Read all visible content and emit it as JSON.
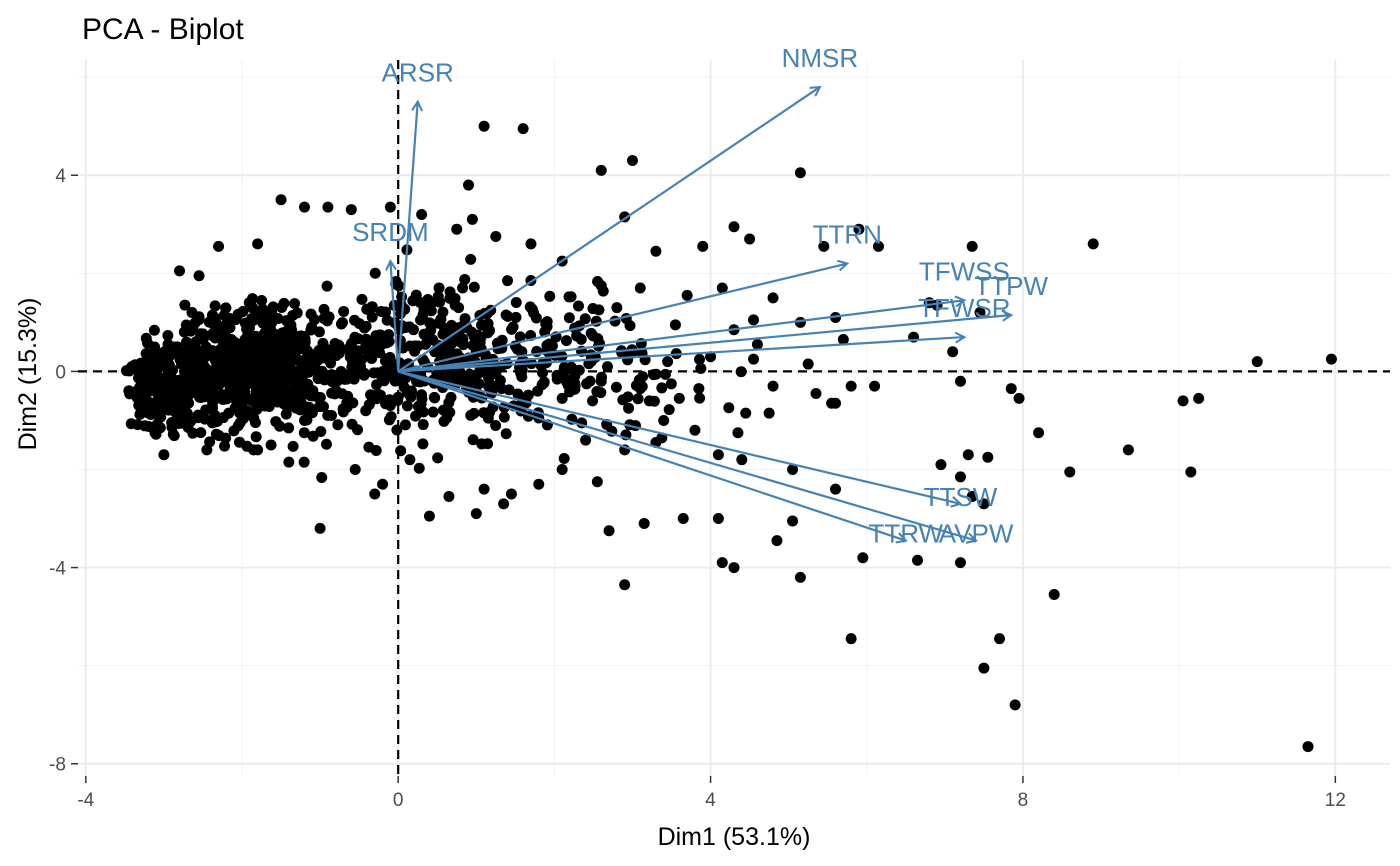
{
  "chart_data": {
    "type": "scatter",
    "title": "PCA - Biplot",
    "xlabel": "Dim1 (53.1%)",
    "ylabel": "Dim2 (15.3%)",
    "xlim": [
      -4.1,
      12.7
    ],
    "ylim": [
      -8.25,
      6.35
    ],
    "x_ticks": [
      -4,
      0,
      4,
      8,
      12
    ],
    "y_ticks": [
      -8,
      -4,
      0,
      4
    ],
    "x_tick_labels": [
      "-4",
      "0",
      "4",
      "8",
      "12"
    ],
    "y_tick_labels": [
      "-8",
      "-4",
      "0",
      "4"
    ],
    "grid": true,
    "arrow_color": "#4682b4",
    "point_color": "#000000",
    "variables": [
      {
        "name": "ARSR",
        "x": 0.25,
        "y": 5.5
      },
      {
        "name": "NMSR",
        "x": 5.4,
        "y": 5.8
      },
      {
        "name": "SRDM",
        "x": -0.1,
        "y": 2.25
      },
      {
        "name": "TTRN",
        "x": 5.75,
        "y": 2.2
      },
      {
        "name": "TFWSS",
        "x": 7.25,
        "y": 1.45
      },
      {
        "name": "TTPW",
        "x": 7.85,
        "y": 1.15
      },
      {
        "name": "TFWSR",
        "x": 7.25,
        "y": 0.7
      },
      {
        "name": "TTSW",
        "x": 7.2,
        "y": -2.7
      },
      {
        "name": "TTRW",
        "x": 6.5,
        "y": -3.45
      },
      {
        "name": "AVPW",
        "x": 7.4,
        "y": -3.45
      }
    ],
    "points": [
      [
        1.1,
        5.0
      ],
      [
        1.6,
        4.95
      ],
      [
        3.0,
        4.3
      ],
      [
        2.6,
        4.1
      ],
      [
        5.15,
        4.05
      ],
      [
        0.9,
        3.8
      ],
      [
        -1.5,
        3.5
      ],
      [
        -1.2,
        3.35
      ],
      [
        -0.9,
        3.35
      ],
      [
        -0.6,
        3.3
      ],
      [
        0.3,
        3.2
      ],
      [
        0.95,
        3.1
      ],
      [
        2.9,
        3.15
      ],
      [
        4.3,
        2.95
      ],
      [
        5.9,
        2.9
      ],
      [
        5.45,
        2.55
      ],
      [
        6.15,
        2.55
      ],
      [
        7.35,
        2.55
      ],
      [
        8.9,
        2.6
      ],
      [
        3.3,
        2.45
      ],
      [
        3.9,
        2.55
      ],
      [
        4.5,
        2.7
      ],
      [
        6.8,
        1.4
      ],
      [
        6.9,
        1.35
      ],
      [
        7.45,
        1.2
      ],
      [
        6.6,
        0.7
      ],
      [
        5.7,
        0.65
      ],
      [
        4.6,
        0.55
      ],
      [
        5.8,
        -0.3
      ],
      [
        6.1,
        -0.3
      ],
      [
        7.1,
        0.4
      ],
      [
        7.2,
        -0.2
      ],
      [
        4.8,
        -0.3
      ],
      [
        5.35,
        -0.45
      ],
      [
        5.55,
        -0.65
      ],
      [
        5.6,
        -0.65
      ],
      [
        4.75,
        -0.85
      ],
      [
        4.45,
        -0.85
      ],
      [
        4.35,
        -1.25
      ],
      [
        3.4,
        -1.0
      ],
      [
        3.8,
        -1.2
      ],
      [
        3.3,
        -1.45
      ],
      [
        2.4,
        -1.4
      ],
      [
        2.9,
        -1.6
      ],
      [
        4.1,
        -1.7
      ],
      [
        4.4,
        -1.8
      ],
      [
        5.05,
        -2.0
      ],
      [
        6.95,
        -1.9
      ],
      [
        7.3,
        -1.7
      ],
      [
        7.55,
        -1.75
      ],
      [
        7.85,
        -0.35
      ],
      [
        7.95,
        -0.55
      ],
      [
        8.2,
        -1.25
      ],
      [
        8.6,
        -2.05
      ],
      [
        9.35,
        -1.6
      ],
      [
        10.05,
        -0.6
      ],
      [
        10.25,
        -0.55
      ],
      [
        10.15,
        -2.05
      ],
      [
        11.0,
        0.2
      ],
      [
        11.95,
        0.25
      ],
      [
        7.2,
        -2.15
      ],
      [
        7.35,
        -2.55
      ],
      [
        7.5,
        -2.7
      ],
      [
        5.6,
        -2.4
      ],
      [
        5.05,
        -3.05
      ],
      [
        4.1,
        -3.0
      ],
      [
        4.85,
        -3.45
      ],
      [
        5.95,
        -3.8
      ],
      [
        6.65,
        -3.85
      ],
      [
        7.2,
        -3.9
      ],
      [
        4.15,
        -3.9
      ],
      [
        4.3,
        -4.0
      ],
      [
        5.15,
        -4.2
      ],
      [
        2.9,
        -4.35
      ],
      [
        2.7,
        -3.25
      ],
      [
        3.15,
        -3.1
      ],
      [
        3.65,
        -3.0
      ],
      [
        8.4,
        -4.55
      ],
      [
        5.8,
        -5.45
      ],
      [
        7.7,
        -5.45
      ],
      [
        7.5,
        -6.05
      ],
      [
        7.9,
        -6.8
      ],
      [
        11.65,
        -7.65
      ],
      [
        -1.0,
        -3.2
      ],
      [
        -2.3,
        2.55
      ],
      [
        -2.8,
        2.05
      ],
      [
        -2.55,
        1.95
      ],
      [
        -1.8,
        2.6
      ],
      [
        -0.1,
        3.35
      ],
      [
        0.75,
        2.9
      ],
      [
        1.25,
        2.75
      ],
      [
        1.7,
        2.6
      ],
      [
        2.1,
        2.25
      ],
      [
        1.4,
        1.85
      ],
      [
        2.6,
        1.75
      ],
      [
        3.1,
        1.7
      ],
      [
        2.8,
        1.3
      ],
      [
        3.7,
        1.55
      ],
      [
        4.15,
        1.7
      ],
      [
        4.8,
        1.5
      ],
      [
        4.55,
        1.05
      ],
      [
        5.15,
        1.0
      ],
      [
        3.55,
        0.95
      ],
      [
        4.3,
        0.85
      ],
      [
        5.6,
        1.1
      ],
      [
        4.0,
        0.3
      ],
      [
        3.45,
        0.2
      ],
      [
        4.55,
        0.25
      ],
      [
        5.25,
        0.15
      ],
      [
        2.6,
        -0.2
      ],
      [
        3.1,
        -0.35
      ],
      [
        3.85,
        -0.35
      ],
      [
        2.1,
        -0.55
      ],
      [
        2.95,
        -0.75
      ],
      [
        3.6,
        -0.55
      ],
      [
        1.8,
        -0.95
      ],
      [
        2.35,
        -1.05
      ],
      [
        1.1,
        -2.4
      ],
      [
        0.65,
        -2.55
      ],
      [
        1.45,
        -2.5
      ],
      [
        1.8,
        -2.3
      ],
      [
        0.4,
        -2.95
      ],
      [
        1.0,
        -2.9
      ],
      [
        1.35,
        -2.7
      ],
      [
        2.55,
        -2.25
      ],
      [
        2.1,
        -2.0
      ],
      [
        0.15,
        -1.8
      ],
      [
        -0.55,
        -2.0
      ],
      [
        -0.2,
        -2.3
      ],
      [
        -0.3,
        -2.5
      ],
      [
        -1.4,
        -1.85
      ],
      [
        -1.8,
        -1.6
      ],
      [
        -2.45,
        -1.6
      ],
      [
        -3.0,
        -1.7
      ]
    ]
  }
}
